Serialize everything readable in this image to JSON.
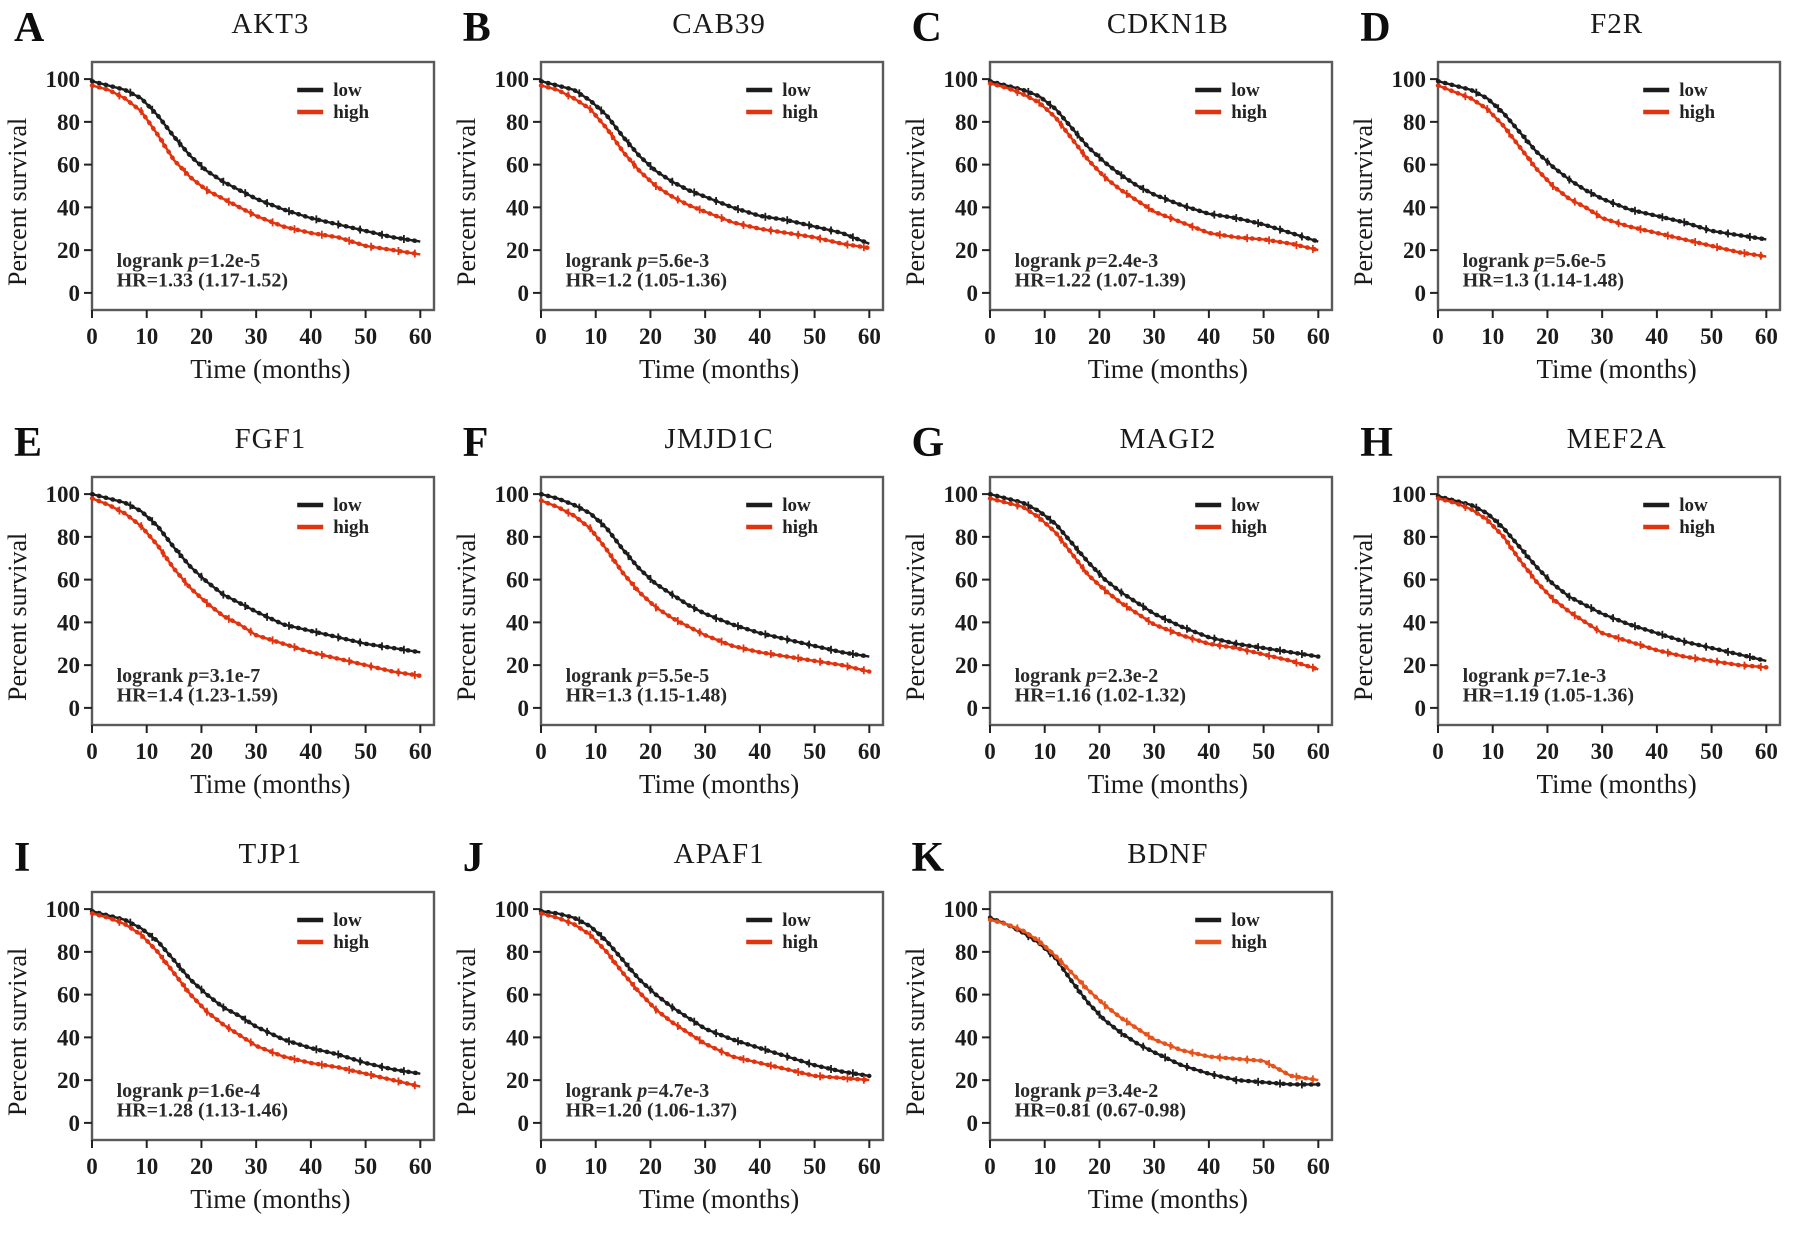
{
  "figure": {
    "ylabel": "Percent survival",
    "xlabel": "Time (months)",
    "legend": {
      "low_label": "low",
      "high_label": "high"
    },
    "colors": {
      "low": "#1c1c1c",
      "high": "#e2330f",
      "axis": "#5a5a5a",
      "annotation": "#2a2a2a"
    },
    "y_ticks": [
      0,
      20,
      40,
      60,
      80,
      100
    ],
    "x_ticks": [
      0,
      10,
      20,
      30,
      40,
      50,
      60
    ]
  },
  "chart_data": [
    {
      "panel": "A",
      "title": "AKT3",
      "type": "line",
      "xlabel": "Time (months)",
      "ylabel": "Percent survival",
      "xlim": [
        0,
        60
      ],
      "ylim": [
        0,
        100
      ],
      "annotation": {
        "line1_pre": "logrank ",
        "line1_var": "p",
        "line1_post": "=1.2e-5",
        "line2": "HR=1.33 (1.17-1.52)"
      },
      "x": [
        0,
        3,
        6,
        9,
        12,
        15,
        18,
        21,
        24,
        27,
        30,
        35,
        40,
        45,
        50,
        55,
        60
      ],
      "series": [
        {
          "name": "low",
          "values": [
            99,
            97,
            95,
            91,
            83,
            73,
            64,
            57,
            52,
            48,
            44,
            39,
            35,
            32,
            29,
            26,
            24
          ]
        },
        {
          "name": "high",
          "values": [
            97,
            95,
            91,
            85,
            74,
            62,
            54,
            48,
            44,
            40,
            36,
            31,
            28,
            26,
            22,
            20,
            18
          ]
        }
      ]
    },
    {
      "panel": "B",
      "title": "CAB39",
      "type": "line",
      "xlabel": "Time (months)",
      "ylabel": "Percent survival",
      "xlim": [
        0,
        60
      ],
      "ylim": [
        0,
        100
      ],
      "annotation": {
        "line1_pre": "logrank ",
        "line1_var": "p",
        "line1_post": "=5.6e-3",
        "line2": "HR=1.2 (1.05-1.36)"
      },
      "x": [
        0,
        3,
        6,
        9,
        12,
        15,
        18,
        21,
        24,
        27,
        30,
        35,
        40,
        45,
        50,
        55,
        60
      ],
      "series": [
        {
          "name": "low",
          "values": [
            99,
            97,
            95,
            90,
            83,
            73,
            64,
            57,
            52,
            48,
            45,
            40,
            36,
            34,
            31,
            28,
            23
          ]
        },
        {
          "name": "high",
          "values": [
            97,
            95,
            91,
            86,
            77,
            66,
            57,
            50,
            45,
            41,
            38,
            33,
            30,
            28,
            26,
            23,
            21
          ]
        }
      ]
    },
    {
      "panel": "C",
      "title": "CDKN1B",
      "type": "line",
      "xlabel": "Time (months)",
      "ylabel": "Percent survival",
      "xlim": [
        0,
        60
      ],
      "ylim": [
        0,
        100
      ],
      "annotation": {
        "line1_pre": "logrank ",
        "line1_var": "p",
        "line1_post": "=2.4e-3",
        "line2": "HR=1.22 (1.07-1.39)"
      },
      "x": [
        0,
        3,
        6,
        9,
        12,
        15,
        18,
        21,
        24,
        27,
        30,
        35,
        40,
        45,
        50,
        55,
        60
      ],
      "series": [
        {
          "name": "low",
          "values": [
            99,
            97,
            95,
            92,
            86,
            77,
            68,
            61,
            55,
            50,
            46,
            41,
            37,
            35,
            32,
            28,
            24
          ]
        },
        {
          "name": "high",
          "values": [
            98,
            96,
            93,
            89,
            82,
            72,
            62,
            54,
            48,
            43,
            38,
            33,
            28,
            26,
            25,
            23,
            20
          ]
        }
      ]
    },
    {
      "panel": "D",
      "title": "F2R",
      "type": "line",
      "xlabel": "Time (months)",
      "ylabel": "Percent survival",
      "xlim": [
        0,
        60
      ],
      "ylim": [
        0,
        100
      ],
      "annotation": {
        "line1_pre": "logrank ",
        "line1_var": "p",
        "line1_post": "=5.6e-5",
        "line2": "HR=1.3 (1.14-1.48)"
      },
      "x": [
        0,
        3,
        6,
        9,
        12,
        15,
        18,
        21,
        24,
        27,
        30,
        35,
        40,
        45,
        50,
        55,
        60
      ],
      "series": [
        {
          "name": "low",
          "values": [
            99,
            97,
            95,
            91,
            84,
            75,
            66,
            59,
            53,
            48,
            44,
            39,
            36,
            33,
            29,
            27,
            25
          ]
        },
        {
          "name": "high",
          "values": [
            97,
            94,
            91,
            86,
            78,
            68,
            58,
            50,
            44,
            40,
            35,
            31,
            28,
            25,
            22,
            19,
            17
          ]
        }
      ]
    },
    {
      "panel": "E",
      "title": "FGF1",
      "type": "line",
      "xlabel": "Time (months)",
      "ylabel": "Percent survival",
      "xlim": [
        0,
        60
      ],
      "ylim": [
        0,
        100
      ],
      "annotation": {
        "line1_pre": "logrank ",
        "line1_var": "p",
        "line1_post": "=3.1e-7",
        "line2": "HR=1.4 (1.23-1.59)"
      },
      "x": [
        0,
        3,
        6,
        9,
        12,
        15,
        18,
        21,
        24,
        27,
        30,
        35,
        40,
        45,
        50,
        55,
        60
      ],
      "series": [
        {
          "name": "low",
          "values": [
            100,
            98,
            96,
            92,
            85,
            75,
            66,
            59,
            53,
            49,
            45,
            39,
            36,
            33,
            30,
            28,
            26
          ]
        },
        {
          "name": "high",
          "values": [
            98,
            95,
            91,
            85,
            76,
            65,
            56,
            49,
            43,
            39,
            34,
            30,
            26,
            23,
            20,
            17,
            15
          ]
        }
      ]
    },
    {
      "panel": "F",
      "title": "JMJD1C",
      "type": "line",
      "xlabel": "Time (months)",
      "ylabel": "Percent survival",
      "xlim": [
        0,
        60
      ],
      "ylim": [
        0,
        100
      ],
      "annotation": {
        "line1_pre": "logrank ",
        "line1_var": "p",
        "line1_post": "=5.5e-5",
        "line2": "HR=1.3 (1.15-1.48)"
      },
      "x": [
        0,
        3,
        6,
        9,
        12,
        15,
        18,
        21,
        24,
        27,
        30,
        35,
        40,
        45,
        50,
        55,
        60
      ],
      "series": [
        {
          "name": "low",
          "values": [
            100,
            98,
            95,
            91,
            84,
            74,
            65,
            58,
            53,
            48,
            44,
            39,
            35,
            32,
            29,
            26,
            24
          ]
        },
        {
          "name": "high",
          "values": [
            97,
            94,
            90,
            84,
            74,
            63,
            54,
            47,
            42,
            38,
            34,
            29,
            26,
            24,
            22,
            20,
            17
          ]
        }
      ]
    },
    {
      "panel": "G",
      "title": "MAGI2",
      "type": "line",
      "xlabel": "Time (months)",
      "ylabel": "Percent survival",
      "xlim": [
        0,
        60
      ],
      "ylim": [
        0,
        100
      ],
      "annotation": {
        "line1_pre": "logrank ",
        "line1_var": "p",
        "line1_post": "=2.3e-2",
        "line2": "HR=1.16 (1.02-1.32)"
      },
      "x": [
        0,
        3,
        6,
        9,
        12,
        15,
        18,
        21,
        24,
        27,
        30,
        35,
        40,
        45,
        50,
        55,
        60
      ],
      "series": [
        {
          "name": "low",
          "values": [
            100,
            98,
            96,
            92,
            86,
            77,
            68,
            60,
            54,
            49,
            44,
            38,
            33,
            30,
            28,
            26,
            24
          ]
        },
        {
          "name": "high",
          "values": [
            98,
            96,
            94,
            89,
            82,
            72,
            62,
            55,
            49,
            44,
            39,
            34,
            30,
            28,
            25,
            22,
            18
          ]
        }
      ]
    },
    {
      "panel": "H",
      "title": "MEF2A",
      "type": "line",
      "xlabel": "Time (months)",
      "ylabel": "Percent survival",
      "xlim": [
        0,
        60
      ],
      "ylim": [
        0,
        100
      ],
      "annotation": {
        "line1_pre": "logrank ",
        "line1_var": "p",
        "line1_post": "=7.1e-3",
        "line2": "HR=1.19 (1.05-1.36)"
      },
      "x": [
        0,
        3,
        6,
        9,
        12,
        15,
        18,
        21,
        24,
        27,
        30,
        35,
        40,
        45,
        50,
        55,
        60
      ],
      "series": [
        {
          "name": "low",
          "values": [
            99,
            97,
            95,
            91,
            84,
            75,
            66,
            58,
            52,
            48,
            44,
            39,
            35,
            31,
            28,
            25,
            22
          ]
        },
        {
          "name": "high",
          "values": [
            98,
            96,
            93,
            88,
            80,
            69,
            59,
            51,
            45,
            40,
            35,
            31,
            27,
            24,
            22,
            20,
            19
          ]
        }
      ]
    },
    {
      "panel": "I",
      "title": "TJP1",
      "type": "line",
      "xlabel": "Time (months)",
      "ylabel": "Percent survival",
      "xlim": [
        0,
        60
      ],
      "ylim": [
        0,
        100
      ],
      "annotation": {
        "line1_pre": "logrank ",
        "line1_var": "p",
        "line1_post": "=1.6e-4",
        "line2": "HR=1.28 (1.13-1.46)"
      },
      "x": [
        0,
        3,
        6,
        9,
        12,
        15,
        18,
        21,
        24,
        27,
        30,
        35,
        40,
        45,
        50,
        55,
        60
      ],
      "series": [
        {
          "name": "low",
          "values": [
            99,
            97,
            95,
            91,
            85,
            76,
            67,
            60,
            54,
            50,
            45,
            39,
            35,
            32,
            28,
            25,
            23
          ]
        },
        {
          "name": "high",
          "values": [
            98,
            96,
            93,
            88,
            80,
            70,
            60,
            52,
            46,
            41,
            36,
            31,
            28,
            26,
            23,
            20,
            17
          ]
        }
      ]
    },
    {
      "panel": "J",
      "title": "APAF1",
      "type": "line",
      "xlabel": "Time (months)",
      "ylabel": "Percent survival",
      "xlim": [
        0,
        60
      ],
      "ylim": [
        0,
        100
      ],
      "annotation": {
        "line1_pre": "logrank ",
        "line1_var": "p",
        "line1_post": "=4.7e-3",
        "line2": "HR=1.20 (1.06-1.37)"
      },
      "x": [
        0,
        3,
        6,
        9,
        12,
        15,
        18,
        21,
        24,
        27,
        30,
        35,
        40,
        45,
        50,
        55,
        60
      ],
      "series": [
        {
          "name": "low",
          "values": [
            99,
            98,
            96,
            92,
            85,
            76,
            67,
            60,
            54,
            49,
            44,
            39,
            35,
            31,
            27,
            24,
            22
          ]
        },
        {
          "name": "high",
          "values": [
            98,
            96,
            93,
            88,
            80,
            70,
            61,
            53,
            47,
            42,
            37,
            31,
            28,
            25,
            22,
            21,
            20
          ]
        }
      ]
    },
    {
      "panel": "K",
      "title": "BDNF",
      "type": "line",
      "xlabel": "Time (months)",
      "ylabel": "Percent survival",
      "xlim": [
        0,
        60
      ],
      "ylim": [
        0,
        100
      ],
      "high_color": "#e6531c",
      "annotation": {
        "line1_pre": "logrank ",
        "line1_var": "p",
        "line1_post": "=3.4e-2",
        "line2": "HR=0.81 (0.67-0.98)"
      },
      "x": [
        0,
        3,
        6,
        9,
        12,
        15,
        18,
        21,
        24,
        27,
        30,
        35,
        40,
        45,
        50,
        55,
        60
      ],
      "series": [
        {
          "name": "low",
          "values": [
            96,
            93,
            89,
            84,
            77,
            66,
            56,
            48,
            42,
            37,
            33,
            27,
            23,
            20,
            19,
            18,
            18
          ]
        },
        {
          "name": "high",
          "values": [
            95,
            93,
            90,
            85,
            78,
            70,
            62,
            55,
            49,
            44,
            39,
            34,
            31,
            30,
            29,
            22,
            20
          ]
        }
      ]
    }
  ]
}
